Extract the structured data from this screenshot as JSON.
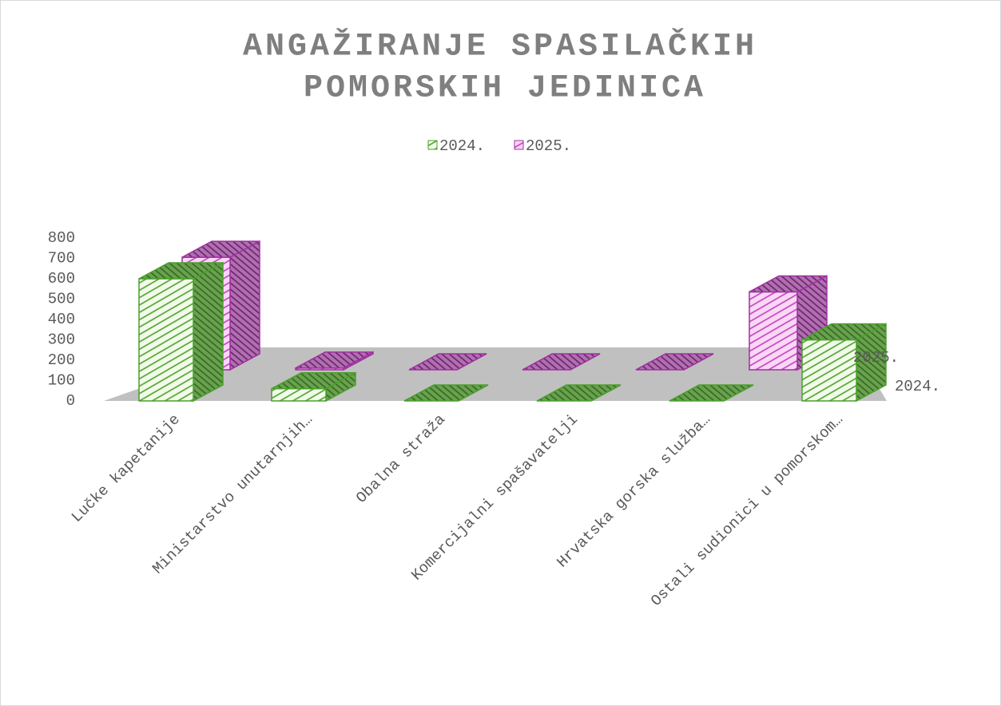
{
  "chart_data": {
    "type": "bar3d",
    "title": "ANGAŽIRANJE SPASILAČKIH POMORSKIH JEDINICA",
    "categories": [
      "Lučke kapetanije",
      "Ministarstvo unutarnjih…",
      "Obalna straža",
      "Komercijalni spašavatelji",
      "Hrvatska gorska služba…",
      "Ostali sudionici u pomorskom…"
    ],
    "series": [
      {
        "name": "2024.",
        "color": "#4aa02c",
        "values": [
          600,
          60,
          0,
          0,
          0,
          300
        ]
      },
      {
        "name": "2025.",
        "color": "#a030a0",
        "values": [
          650,
          10,
          0,
          0,
          0,
          450
        ]
      }
    ],
    "ylim": [
      0,
      800
    ],
    "yticks": [
      0,
      100,
      200,
      300,
      400,
      500,
      600,
      700,
      800
    ],
    "legend": "top"
  }
}
